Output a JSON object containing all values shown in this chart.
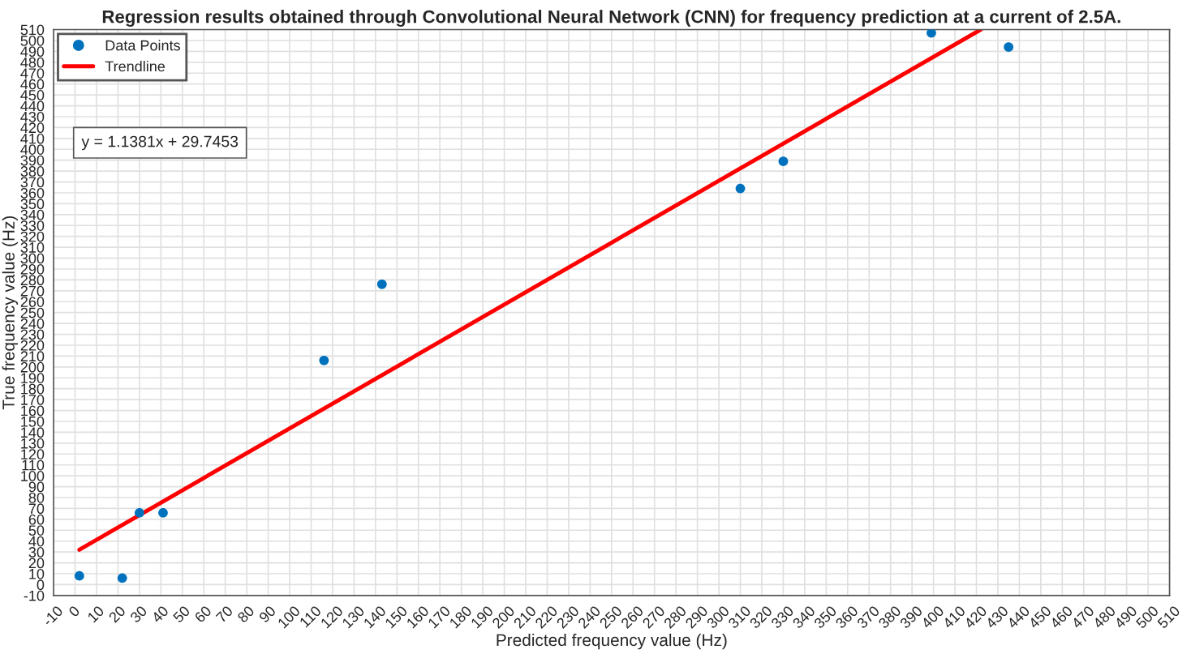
{
  "chart_data": {
    "type": "scatter",
    "title": "Regression results obtained through Convolutional Neural Network (CNN) for frequency prediction at a current of 2.5A.",
    "xlabel": "Predicted frequency value (Hz)",
    "ylabel": "True frequency value (Hz)",
    "series": [
      {
        "name": "Data Points",
        "color": "#0072bd",
        "marker": "circle",
        "x": [
          2,
          22,
          30,
          41,
          116,
          143,
          310,
          330,
          399,
          435
        ],
        "values": [
          8,
          6,
          66,
          66,
          206,
          276,
          364,
          389,
          507,
          494
        ]
      },
      {
        "name": "Trendline",
        "type": "line",
        "color": "#ff0000",
        "line_style": "solid",
        "x": [
          2,
          422
        ],
        "values": [
          32.0,
          510.0
        ]
      }
    ],
    "annotations": [
      "y = 1.1381x + 29.7453"
    ],
    "xlim": [
      -10,
      510
    ],
    "ylim": [
      -10,
      510
    ],
    "xticks": [
      -10,
      0,
      10,
      20,
      30,
      40,
      50,
      60,
      70,
      80,
      90,
      100,
      110,
      120,
      130,
      140,
      150,
      160,
      170,
      180,
      190,
      200,
      210,
      220,
      230,
      240,
      250,
      260,
      270,
      280,
      290,
      300,
      310,
      320,
      330,
      340,
      350,
      360,
      370,
      380,
      390,
      400,
      410,
      420,
      430,
      440,
      450,
      460,
      470,
      480,
      490,
      500,
      510
    ],
    "yticks": [
      -10,
      0,
      10,
      20,
      30,
      40,
      50,
      60,
      70,
      80,
      90,
      100,
      110,
      120,
      130,
      140,
      150,
      160,
      170,
      180,
      190,
      200,
      210,
      220,
      230,
      240,
      250,
      260,
      270,
      280,
      290,
      300,
      310,
      320,
      330,
      340,
      350,
      360,
      370,
      380,
      390,
      400,
      410,
      420,
      430,
      440,
      450,
      460,
      470,
      480,
      490,
      500,
      510
    ],
    "grid": true,
    "legend": "top left"
  }
}
